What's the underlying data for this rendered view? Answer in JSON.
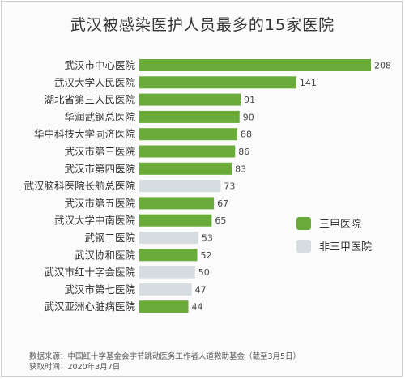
{
  "chart_data": {
    "type": "bar",
    "orientation": "horizontal",
    "title": "武汉被感染医护人员最多的15家医院",
    "categories": [
      "武汉市中心医院",
      "武汉大学人民医院",
      "湖北省第三人民医院",
      "华润武钢总医院",
      "华中科技大学同济医院",
      "武汉市第三医院",
      "武汉市第四医院",
      "武汉脑科医院长航总医院",
      "武汉市第五医院",
      "武汉大学中南医院",
      "武钢二医院",
      "武汉协和医院",
      "武汉市红十字会医院",
      "武汉市第七医院",
      "武汉亚洲心脏病医院"
    ],
    "values": [
      208,
      141,
      91,
      90,
      88,
      86,
      83,
      73,
      67,
      65,
      53,
      52,
      50,
      47,
      44
    ],
    "groups": [
      "g1",
      "g1",
      "g1",
      "g1",
      "g1",
      "g1",
      "g1",
      "g2",
      "g1",
      "g1",
      "g2",
      "g1",
      "g2",
      "g2",
      "g1"
    ],
    "legend": [
      {
        "key": "g1",
        "label": "三甲医院",
        "color": "#6aab3a"
      },
      {
        "key": "g2",
        "label": "非三甲医院",
        "color": "#d5dde0"
      }
    ],
    "xlim": [
      0,
      208
    ],
    "grid": false,
    "legend_position": "right"
  },
  "source": {
    "line1": "数据来源：中国红十字基金会宇节跳动医务工作者人道救助基金（截至3月5日）",
    "line2": "获取时间：2020年3月7日"
  }
}
